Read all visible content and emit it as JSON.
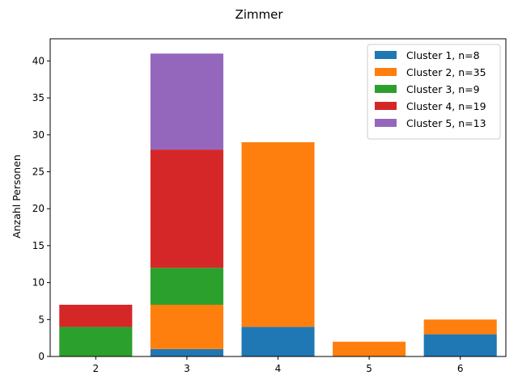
{
  "chart_data": {
    "type": "bar",
    "stacked": true,
    "title": "Zimmer",
    "xlabel": "",
    "ylabel": "Anzahl Personen",
    "categories": [
      "2",
      "3",
      "4",
      "5",
      "6"
    ],
    "ylim": [
      0,
      43
    ],
    "yticks": [
      0,
      5,
      10,
      15,
      20,
      25,
      30,
      35,
      40
    ],
    "grid": false,
    "legend_position": "top-right",
    "series": [
      {
        "name": "Cluster 1, n=8",
        "color": "#1f77b4",
        "values": [
          0,
          1,
          4,
          0,
          3
        ]
      },
      {
        "name": "Cluster 2, n=35",
        "color": "#ff7f0e",
        "values": [
          0,
          6,
          25,
          2,
          2
        ]
      },
      {
        "name": "Cluster 3, n=9",
        "color": "#2ca02c",
        "values": [
          4,
          5,
          0,
          0,
          0
        ]
      },
      {
        "name": "Cluster 4, n=19",
        "color": "#d62728",
        "values": [
          3,
          16,
          0,
          0,
          0
        ]
      },
      {
        "name": "Cluster 5, n=13",
        "color": "#9467bd",
        "values": [
          0,
          13,
          0,
          0,
          0
        ]
      }
    ]
  }
}
